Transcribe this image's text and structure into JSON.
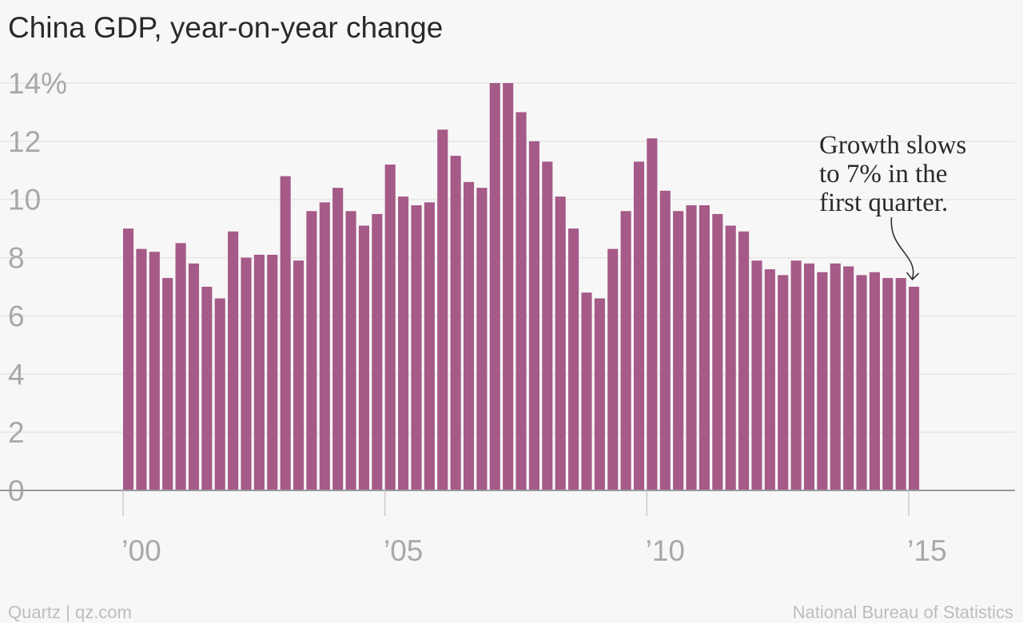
{
  "chart_data": {
    "type": "bar",
    "title": "China GDP, year-on-year change",
    "yticks": [
      {
        "value": 0,
        "label": "0"
      },
      {
        "value": 2,
        "label": "2"
      },
      {
        "value": 4,
        "label": "4"
      },
      {
        "value": 6,
        "label": "6"
      },
      {
        "value": 8,
        "label": "8"
      },
      {
        "value": 10,
        "label": "10"
      },
      {
        "value": 12,
        "label": "12"
      },
      {
        "value": 14,
        "label": "14%"
      }
    ],
    "xticks": [
      {
        "value": 2000,
        "label": "’00"
      },
      {
        "value": 2005,
        "label": "’05"
      },
      {
        "value": 2010,
        "label": "’10"
      },
      {
        "value": 2015,
        "label": "’15"
      }
    ],
    "ylim": [
      0,
      14
    ],
    "xlim": [
      1998,
      2017
    ],
    "grid": true,
    "categories": [
      "2000-Q1",
      "2000-Q2",
      "2000-Q3",
      "2000-Q4",
      "2001-Q1",
      "2001-Q2",
      "2001-Q3",
      "2001-Q4",
      "2002-Q1",
      "2002-Q2",
      "2002-Q3",
      "2002-Q4",
      "2003-Q1",
      "2003-Q2",
      "2003-Q3",
      "2003-Q4",
      "2004-Q1",
      "2004-Q2",
      "2004-Q3",
      "2004-Q4",
      "2005-Q1",
      "2005-Q2",
      "2005-Q3",
      "2005-Q4",
      "2006-Q1",
      "2006-Q2",
      "2006-Q3",
      "2006-Q4",
      "2007-Q1",
      "2007-Q2",
      "2007-Q3",
      "2007-Q4",
      "2008-Q1",
      "2008-Q2",
      "2008-Q3",
      "2008-Q4",
      "2009-Q1",
      "2009-Q2",
      "2009-Q3",
      "2009-Q4",
      "2010-Q1",
      "2010-Q2",
      "2010-Q3",
      "2010-Q4",
      "2011-Q1",
      "2011-Q2",
      "2011-Q3",
      "2011-Q4",
      "2012-Q1",
      "2012-Q2",
      "2012-Q3",
      "2012-Q4",
      "2013-Q1",
      "2013-Q2",
      "2013-Q3",
      "2013-Q4",
      "2014-Q1",
      "2014-Q2",
      "2014-Q3",
      "2014-Q4",
      "2015-Q1"
    ],
    "values": [
      9.0,
      8.3,
      8.2,
      7.3,
      8.5,
      7.8,
      7.0,
      6.6,
      8.9,
      8.0,
      8.1,
      8.1,
      10.8,
      7.9,
      9.6,
      9.9,
      10.4,
      9.6,
      9.1,
      9.5,
      11.2,
      10.1,
      9.8,
      9.9,
      12.4,
      11.5,
      10.6,
      10.4,
      14.0,
      14.0,
      13.0,
      12.0,
      11.3,
      10.1,
      9.0,
      6.8,
      6.6,
      8.3,
      9.6,
      11.3,
      12.1,
      10.3,
      9.6,
      9.8,
      9.8,
      9.5,
      9.1,
      8.9,
      7.9,
      7.6,
      7.4,
      7.9,
      7.8,
      7.5,
      7.8,
      7.7,
      7.4,
      7.5,
      7.3,
      7.3,
      7.0
    ],
    "annotation": {
      "lines": [
        "Growth slows",
        "to 7% in the",
        "first quarter."
      ],
      "target_index": 60
    },
    "colors": {
      "bar": "#a55a88",
      "grid": "#e6e6e6",
      "axis": "#999999",
      "tick_text": "#a8a8a8",
      "title_text": "#2a2a2a"
    }
  },
  "footer": {
    "left": "Quartz | qz.com",
    "right": "National Bureau of Statistics"
  }
}
